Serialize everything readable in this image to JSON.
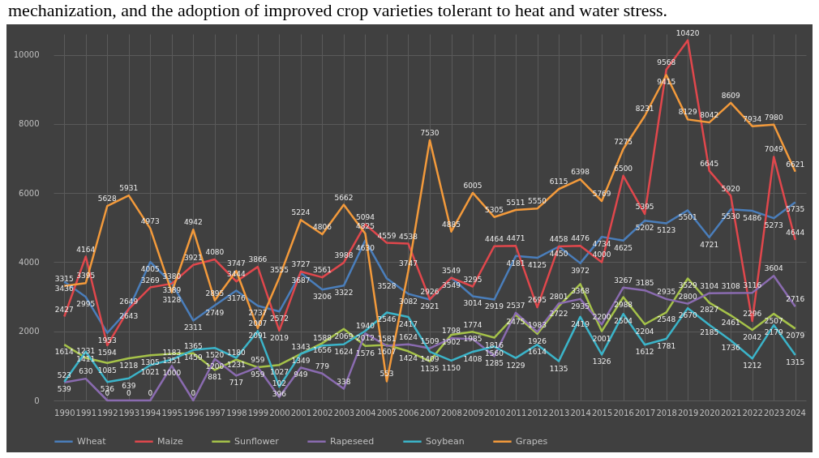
{
  "chart_data": {
    "type": "line",
    "annotations": [
      "mechanization, and the adoption of improved crop varieties tolerant to heat and water stress."
    ],
    "categories": [
      "1990",
      "1991",
      "1992",
      "1993",
      "1994",
      "1995",
      "1996",
      "1997",
      "1998",
      "1999",
      "2000",
      "2001",
      "2002",
      "2003",
      "2004",
      "2005",
      "2006",
      "2007",
      "2008",
      "2009",
      "2010",
      "2011",
      "2012",
      "2013",
      "2014",
      "2015",
      "2016",
      "2017",
      "2018",
      "2019",
      "2020",
      "2021",
      "2022",
      "2023",
      "2024"
    ],
    "ylim": [
      0,
      10600
    ],
    "yticks": [
      0,
      2000,
      4000,
      6000,
      8000,
      10000
    ],
    "grid": true,
    "legend": "bottom",
    "data_labels": true,
    "marker": "none",
    "line_style": "solid",
    "series": [
      {
        "name": "Wheat",
        "color": "#4a7ebb",
        "values": [
          3436,
          2995,
          1953,
          2643,
          4005,
          3389,
          2311,
          2749,
          3176,
          2737,
          2572,
          3687,
          3206,
          3322,
          4630,
          3528,
          3082,
          2921,
          3549,
          3014,
          2919,
          4181,
          4125,
          4450,
          3972,
          4734,
          4625,
          5202,
          5123,
          5501,
          4721,
          5530,
          5486,
          5273,
          5735
        ]
      },
      {
        "name": "Maize",
        "color": "#e0474c",
        "values": [
          2427,
          4164,
          1594,
          2649,
          3269,
          3380,
          3921,
          4080,
          3444,
          3866,
          2019,
          3727,
          3561,
          3988,
          5094,
          4559,
          4538,
          2926,
          3549,
          3295,
          4464,
          4471,
          2695,
          4458,
          4476,
          4000,
          6500,
          5395,
          9568,
          10420,
          6645,
          5920,
          2296,
          7049,
          4644
        ]
      },
      {
        "name": "Sunflower",
        "color": "#a5c249",
        "values": [
          1614,
          1231,
          1085,
          1218,
          1305,
          1351,
          1365,
          881,
          1180,
          959,
          1027,
          1343,
          1656,
          2069,
          1576,
          1607,
          1424,
          1135,
          1902,
          1985,
          1816,
          2475,
          1926,
          2722,
          3368,
          2001,
          2988,
          2204,
          2548,
          3529,
          2827,
          2461,
          2042,
          2507,
          2079
        ]
      },
      {
        "name": "Rapeseed",
        "color": "#8a6bb0",
        "values": [
          523,
          630,
          0,
          0,
          0,
          1000,
          0,
          1200,
          717,
          959,
          102,
          949,
          779,
          338,
          1940,
          1581,
          1624,
          1509,
          1798,
          1774,
          1285,
          2537,
          1983,
          2801,
          2935,
          2200,
          3267,
          3185,
          2935,
          2800,
          3104,
          3108,
          3116,
          3604,
          2716
        ]
      },
      {
        "name": "Soybean",
        "color": "#3bb4c9",
        "values": [
          539,
          1411,
          536,
          639,
          1021,
          1183,
          1459,
          1520,
          1231,
          2007,
          396,
          1349,
          1588,
          1624,
          2012,
          2546,
          2417,
          1409,
          1150,
          1408,
          1560,
          1229,
          1614,
          1135,
          2419,
          1326,
          2504,
          1612,
          1781,
          2670,
          2185,
          1736,
          1212,
          2179,
          1315
        ]
      },
      {
        "name": "Grapes",
        "color": "#f39a3b",
        "values": [
          3315,
          3395,
          5628,
          5931,
          4973,
          3128,
          4942,
          2895,
          3747,
          2091,
          3555,
          5224,
          4806,
          5662,
          4825,
          553,
          3747,
          7530,
          4885,
          6005,
          5305,
          5511,
          5550,
          6115,
          6398,
          5769,
          7275,
          8231,
          9415,
          8129,
          8042,
          8609,
          7934,
          7980,
          6621
        ]
      }
    ]
  }
}
